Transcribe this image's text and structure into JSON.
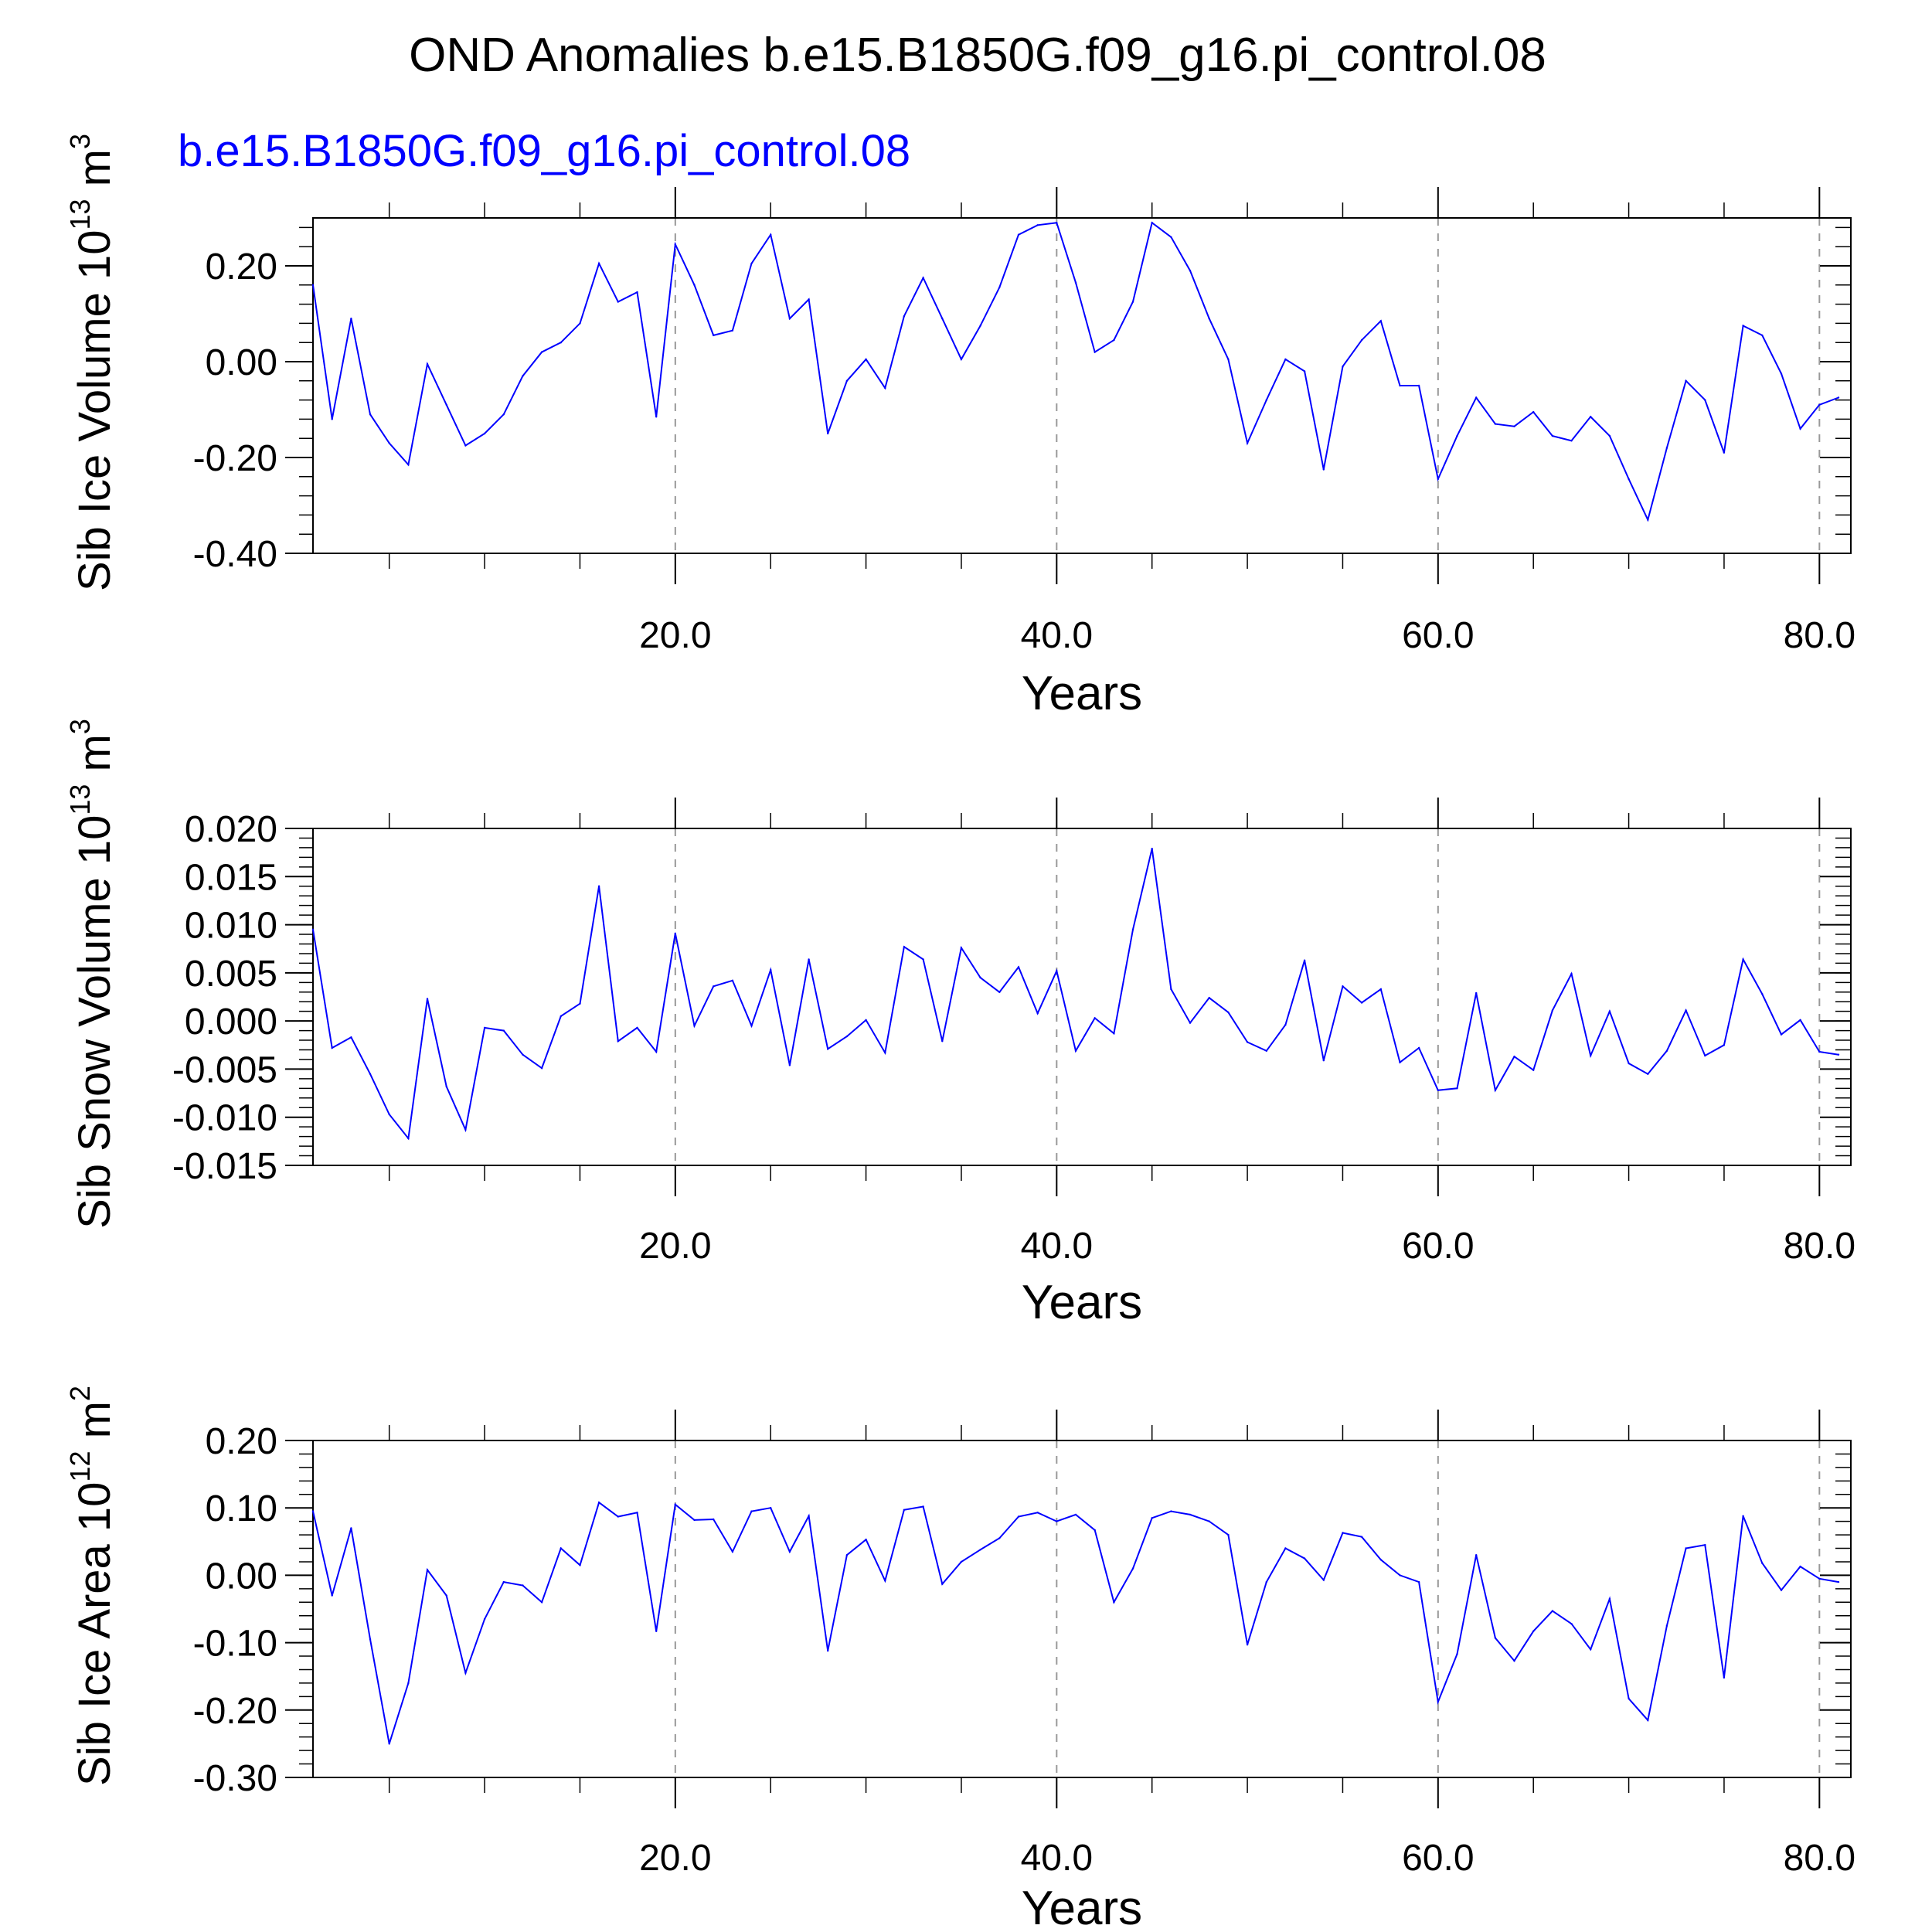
{
  "figure_title": "OND Anomalies b.e15.B1850G.f09_g16.pi_control.08",
  "panel_subtitle": "b.e15.B1850G.f09_g16.pi_control.08",
  "colors": {
    "series": "#0000ff",
    "subtitle": "#0000ff",
    "axes": "#000000",
    "grid": "#999999"
  },
  "chart_data": [
    {
      "type": "line",
      "title": "",
      "xlabel": "Years",
      "ylabel": {
        "base": "Sib Ice Volume 10",
        "exp": "13",
        "unit": " m",
        "unit_exp": "3"
      },
      "xlim": [
        1,
        81
      ],
      "ylim": [
        -0.4,
        0.3
      ],
      "x_ticks": [
        20,
        40,
        60,
        80
      ],
      "x_tick_labels": [
        "20.0",
        "40.0",
        "60.0",
        "80.0"
      ],
      "y_ticks": [
        -0.4,
        -0.2,
        0.0,
        0.2
      ],
      "y_tick_labels": [
        "-0.40",
        "-0.20",
        "0.00",
        "0.20"
      ],
      "grid": "vertical dashed at 20, 40, 60",
      "x": [
        1,
        2,
        3,
        4,
        5,
        6,
        7,
        8,
        9,
        10,
        11,
        12,
        13,
        14,
        15,
        16,
        17,
        18,
        19,
        20,
        21,
        22,
        23,
        24,
        25,
        26,
        27,
        28,
        29,
        30,
        31,
        32,
        33,
        34,
        35,
        36,
        37,
        38,
        39,
        40,
        41,
        42,
        43,
        44,
        45,
        46,
        47,
        48,
        49,
        50,
        51,
        52,
        53,
        54,
        55,
        56,
        57,
        58,
        59,
        60,
        61,
        62,
        63,
        64,
        65,
        66,
        67,
        68,
        69,
        70,
        71,
        72,
        73,
        74,
        75,
        76,
        77,
        78,
        79,
        80,
        81
      ],
      "series": [
        {
          "values": [
            0.16,
            -0.12,
            0.09,
            -0.11,
            -0.17,
            -0.215,
            -0.005,
            -0.09,
            -0.175,
            -0.15,
            -0.11,
            -0.03,
            0.02,
            0.04,
            0.08,
            0.205,
            0.125,
            0.145,
            -0.115,
            0.245,
            0.16,
            0.055,
            0.065,
            0.205,
            0.265,
            0.09,
            0.13,
            -0.15,
            -0.04,
            0.005,
            -0.055,
            0.095,
            0.175,
            0.09,
            0.005,
            0.075,
            0.155,
            0.265,
            0.285,
            0.29,
            0.165,
            0.02,
            0.045,
            0.125,
            0.29,
            0.26,
            0.19,
            0.09,
            0.005,
            -0.17,
            -0.08,
            0.005,
            -0.02,
            -0.225,
            -0.01,
            0.045,
            0.085,
            -0.05,
            -0.05,
            -0.245,
            -0.155,
            -0.075,
            -0.13,
            -0.135,
            -0.105,
            -0.155,
            -0.165,
            -0.115,
            -0.155,
            -0.245,
            -0.33,
            -0.18,
            -0.04,
            -0.08,
            -0.19,
            0.075,
            0.055,
            -0.025,
            -0.14,
            -0.09,
            -0.075
          ]
        }
      ]
    },
    {
      "type": "line",
      "title": "",
      "xlabel": "Years",
      "ylabel": {
        "base": "Sib Snow Volume 10",
        "exp": "13",
        "unit": " m",
        "unit_exp": "3"
      },
      "xlim": [
        1,
        81
      ],
      "ylim": [
        -0.015,
        0.02
      ],
      "x_ticks": [
        20,
        40,
        60,
        80
      ],
      "x_tick_labels": [
        "20.0",
        "40.0",
        "60.0",
        "80.0"
      ],
      "y_ticks": [
        -0.015,
        -0.01,
        -0.005,
        0.0,
        0.005,
        0.01,
        0.015,
        0.02
      ],
      "y_tick_labels": [
        "-0.015",
        "-0.010",
        "-0.005",
        "0.000",
        "0.005",
        "0.010",
        "0.015",
        "0.020"
      ],
      "grid": "vertical dashed at 20, 40, 60",
      "x": [
        1,
        2,
        3,
        4,
        5,
        6,
        7,
        8,
        9,
        10,
        11,
        12,
        13,
        14,
        15,
        16,
        17,
        18,
        19,
        20,
        21,
        22,
        23,
        24,
        25,
        26,
        27,
        28,
        29,
        30,
        31,
        32,
        33,
        34,
        35,
        36,
        37,
        38,
        39,
        40,
        41,
        42,
        43,
        44,
        45,
        46,
        47,
        48,
        49,
        50,
        51,
        52,
        53,
        54,
        55,
        56,
        57,
        58,
        59,
        60,
        61,
        62,
        63,
        64,
        65,
        66,
        67,
        68,
        69,
        70,
        71,
        72,
        73,
        74,
        75,
        76,
        77,
        78,
        79,
        80,
        81
      ],
      "series": [
        {
          "values": [
            0.0095,
            -0.0028,
            -0.0017,
            -0.0055,
            -0.0097,
            -0.0122,
            0.0023,
            -0.0068,
            -0.0113,
            -0.0007,
            -0.001,
            -0.0035,
            -0.0049,
            0.0005,
            0.0018,
            0.014,
            -0.0021,
            -0.0007,
            -0.0032,
            0.0091,
            -0.0005,
            0.0036,
            0.0042,
            -0.0005,
            0.0053,
            -0.0046,
            0.0064,
            -0.0029,
            -0.0016,
            0.0001,
            -0.0033,
            0.0077,
            0.0064,
            -0.0021,
            0.0076,
            0.0045,
            0.003,
            0.0056,
            0.0008,
            0.0052,
            -0.0031,
            0.0003,
            -0.0013,
            0.0095,
            0.0179,
            0.0033,
            -0.0002,
            0.0024,
            0.0009,
            -0.0022,
            -0.0031,
            -0.0004,
            0.0063,
            -0.0041,
            0.0036,
            0.0019,
            0.0033,
            -0.0043,
            -0.0028,
            -0.0072,
            -0.007,
            0.0029,
            -0.0072,
            -0.0037,
            -0.0051,
            0.0011,
            0.0049,
            -0.0036,
            0.001,
            -0.0044,
            -0.0055,
            -0.0031,
            0.0011,
            -0.0036,
            -0.0025,
            0.0064,
            0.0028,
            -0.0014,
            0.0001,
            -0.0032,
            -0.0035
          ]
        }
      ]
    },
    {
      "type": "line",
      "title": "",
      "xlabel": "Years",
      "ylabel": {
        "base": "Sib Ice Area 10",
        "exp": "12",
        "unit": " m",
        "unit_exp": "2"
      },
      "xlim": [
        1,
        81
      ],
      "ylim": [
        -0.3,
        0.2
      ],
      "x_ticks": [
        20,
        40,
        60,
        80
      ],
      "x_tick_labels": [
        "20.0",
        "40.0",
        "60.0",
        "80.0"
      ],
      "y_ticks": [
        -0.3,
        -0.2,
        -0.1,
        0.0,
        0.1,
        0.2
      ],
      "y_tick_labels": [
        "-0.30",
        "-0.20",
        "-0.10",
        "0.00",
        "0.10",
        "0.20"
      ],
      "grid": "vertical dashed at 20, 40, 60",
      "x": [
        1,
        2,
        3,
        4,
        5,
        6,
        7,
        8,
        9,
        10,
        11,
        12,
        13,
        14,
        15,
        16,
        17,
        18,
        19,
        20,
        21,
        22,
        23,
        24,
        25,
        26,
        27,
        28,
        29,
        30,
        31,
        32,
        33,
        34,
        35,
        36,
        37,
        38,
        39,
        40,
        41,
        42,
        43,
        44,
        45,
        46,
        47,
        48,
        49,
        50,
        51,
        52,
        53,
        54,
        55,
        56,
        57,
        58,
        59,
        60,
        61,
        62,
        63,
        64,
        65,
        66,
        67,
        68,
        69,
        70,
        71,
        72,
        73,
        74,
        75,
        76,
        77,
        78,
        79,
        80,
        81
      ],
      "series": [
        {
          "values": [
            0.095,
            -0.03,
            0.07,
            -0.095,
            -0.25,
            -0.16,
            0.008,
            -0.03,
            -0.145,
            -0.065,
            -0.01,
            -0.015,
            -0.04,
            0.04,
            0.015,
            0.108,
            0.087,
            0.093,
            -0.083,
            0.105,
            0.082,
            0.083,
            0.035,
            0.095,
            0.1,
            0.035,
            0.088,
            -0.112,
            0.03,
            0.053,
            -0.008,
            0.097,
            0.102,
            -0.013,
            0.02,
            0.038,
            0.055,
            0.087,
            0.093,
            0.08,
            0.09,
            0.067,
            -0.04,
            0.01,
            0.085,
            0.095,
            0.09,
            0.08,
            0.06,
            -0.103,
            -0.01,
            0.04,
            0.025,
            -0.007,
            0.063,
            0.057,
            0.023,
            0.0,
            -0.01,
            -0.188,
            -0.117,
            0.03,
            -0.093,
            -0.127,
            -0.083,
            -0.053,
            -0.072,
            -0.11,
            -0.035,
            -0.183,
            -0.215,
            -0.075,
            0.04,
            0.045,
            -0.152,
            0.088,
            0.018,
            -0.022,
            0.013,
            -0.005,
            -0.01
          ]
        }
      ]
    }
  ]
}
